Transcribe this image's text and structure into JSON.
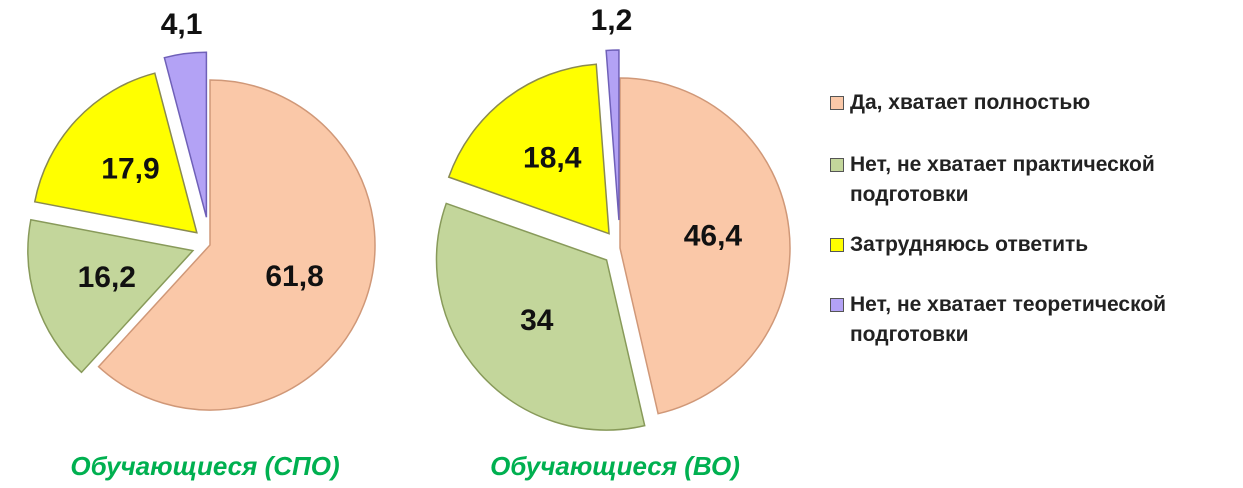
{
  "chart_data": [
    {
      "type": "pie",
      "title": "Обучающиеся (СПО)",
      "categories": [
        "Да, хватает полностью",
        "Нет, не хватает практической подготовки",
        "Затрудняюсь ответить",
        "Нет, не хватает теоретической подготовки"
      ],
      "values": [
        61.8,
        16.2,
        17.9,
        4.1
      ],
      "value_labels": [
        "61,8",
        "16,2",
        "17,9",
        "4,1"
      ],
      "colors": [
        "#fac8a8",
        "#c3d69b",
        "#ffff00",
        "#b3a2f5"
      ]
    },
    {
      "type": "pie",
      "title": "Обучающиеся (ВО)",
      "categories": [
        "Да, хватает полностью",
        "Нет, не хватает практической подготовки",
        "Затрудняюсь ответить",
        "Нет, не хватает теоретической подготовки"
      ],
      "values": [
        46.4,
        34,
        18.4,
        1.2
      ],
      "value_labels": [
        "46,4",
        "34",
        "18,4",
        "1,2"
      ],
      "colors": [
        "#fac8a8",
        "#c3d69b",
        "#ffff00",
        "#b3a2f5"
      ]
    }
  ]
}
